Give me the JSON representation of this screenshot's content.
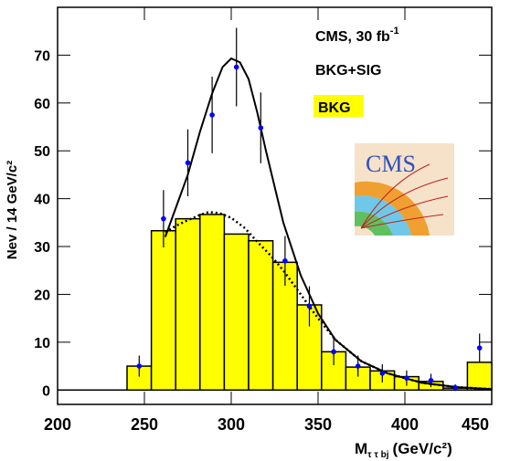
{
  "chart_data": {
    "type": "histogram",
    "name": "BKG",
    "color": "#ffff00",
    "bins": [
      240,
      254,
      268,
      282,
      296,
      310,
      324,
      338,
      352,
      366,
      380,
      394,
      408,
      422,
      436,
      450
    ],
    "counts": [
      5,
      33.3,
      35.8,
      36.7,
      32.6,
      31.2,
      26.7,
      17.8,
      8,
      4.8,
      4,
      2.8,
      1.8,
      0.4,
      5.8
    ],
    "points": {
      "name": "BKG+SIG",
      "color": "#0000ff",
      "x": [
        247,
        261,
        275,
        289,
        303,
        317,
        331,
        345,
        359,
        373,
        387,
        401,
        415,
        429,
        443
      ],
      "values": [
        5,
        35.8,
        47.5,
        57.5,
        67.5,
        54.8,
        27,
        17.5,
        8,
        5,
        3.5,
        2.5,
        2,
        0.5,
        8.8
      ],
      "errors": [
        2.2,
        6,
        7,
        8,
        8.2,
        7.4,
        5.2,
        4.2,
        2.8,
        2.2,
        1.9,
        1.6,
        1.4,
        0.7,
        3
      ]
    },
    "curves": [
      {
        "style": "solid",
        "x": [
          262,
          268,
          275,
          282,
          289,
          295,
          300,
          305,
          310,
          315,
          320,
          330,
          340,
          350,
          360,
          375,
          390,
          410,
          430,
          450
        ],
        "values": [
          32,
          38,
          45,
          54,
          62,
          67.5,
          69.3,
          68.5,
          65,
          58,
          50,
          35,
          24,
          16,
          10.5,
          6,
          3.5,
          1.5,
          0.6,
          0.2
        ]
      },
      {
        "style": "dotted",
        "x": [
          262,
          268,
          275,
          282,
          287,
          293,
          300,
          308,
          315,
          323,
          330,
          340,
          350,
          360,
          375,
          390,
          410,
          430,
          450
        ],
        "values": [
          33,
          34.3,
          35.5,
          36.6,
          37.2,
          37,
          36,
          33.8,
          31,
          28,
          25,
          20,
          15,
          10.5,
          6,
          3.5,
          1.5,
          0.6,
          0.2
        ]
      }
    ],
    "xlim": [
      200,
      450
    ],
    "ylim": [
      -3,
      80
    ],
    "xticks": [
      200,
      250,
      300,
      350,
      400,
      450
    ],
    "yticks": [
      0,
      10,
      20,
      30,
      40,
      50,
      60,
      70
    ],
    "y_label": "Nev / 14 GeV/c²",
    "x_label": {
      "main": "M",
      "sub": "τ τ bj",
      "unit": "(GeV/c²)"
    },
    "annotation": {
      "text": "CMS, 30 fb",
      "sup": "-1"
    },
    "logo_text": "CMS"
  }
}
